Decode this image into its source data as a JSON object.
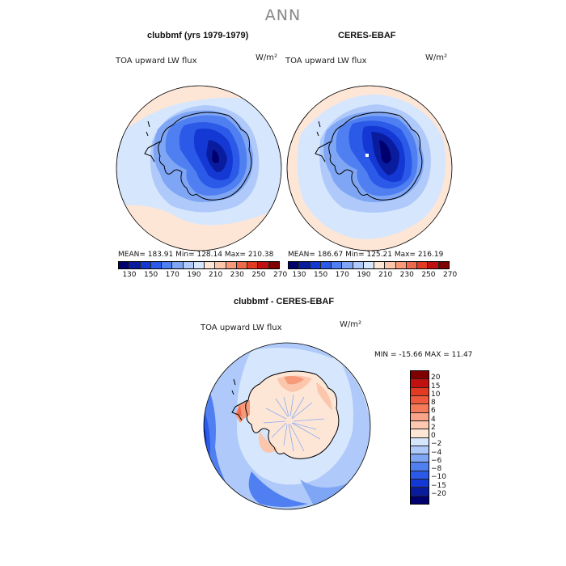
{
  "suptitle": "ANN",
  "panels": [
    {
      "title": "clubbmf (yrs 1979-1979)",
      "var_label": "TOA upward LW flux",
      "units": "W/m²",
      "stats": "MEAN= 183.91  Min= 128.14  Max= 210.38"
    },
    {
      "title": "CERES-EBAF",
      "var_label": "TOA upward LW flux",
      "units": "W/m²",
      "stats": "MEAN= 186.67  Min= 125.21  Max= 216.19"
    },
    {
      "title": "clubbmf - CERES-EBAF",
      "var_label": "TOA upward LW flux",
      "units": "W/m²",
      "stats": "MIN = -15.66 MAX =  11.47"
    }
  ],
  "colorbar_abs": {
    "labels": [
      "130",
      "150",
      "170",
      "190",
      "210",
      "230",
      "250",
      "270"
    ],
    "colors": [
      "#00006e",
      "#0a1c9e",
      "#1438d4",
      "#2c5ae8",
      "#4f7ff0",
      "#7fa6f5",
      "#aec9fa",
      "#d6e6fd",
      "#fde6d6",
      "#fbc6ac",
      "#f79a7a",
      "#ef6a4c",
      "#e33a22",
      "#c01010",
      "#800000"
    ]
  },
  "colorbar_diff": {
    "labels": [
      "20",
      "15",
      "10",
      "8",
      "6",
      "4",
      "2",
      "0",
      "-2",
      "-4",
      "-6",
      "-8",
      "-10",
      "-15",
      "-20"
    ],
    "colors": [
      "#800000",
      "#c01010",
      "#e33a22",
      "#ef5a3c",
      "#f57a5a",
      "#f9a488",
      "#fcc8b0",
      "#fde6d6",
      "#d6e6fd",
      "#aec9fa",
      "#7fa6f5",
      "#4f7ff0",
      "#2c5ae8",
      "#1438d4",
      "#0a1c9e",
      "#00006e"
    ]
  }
}
